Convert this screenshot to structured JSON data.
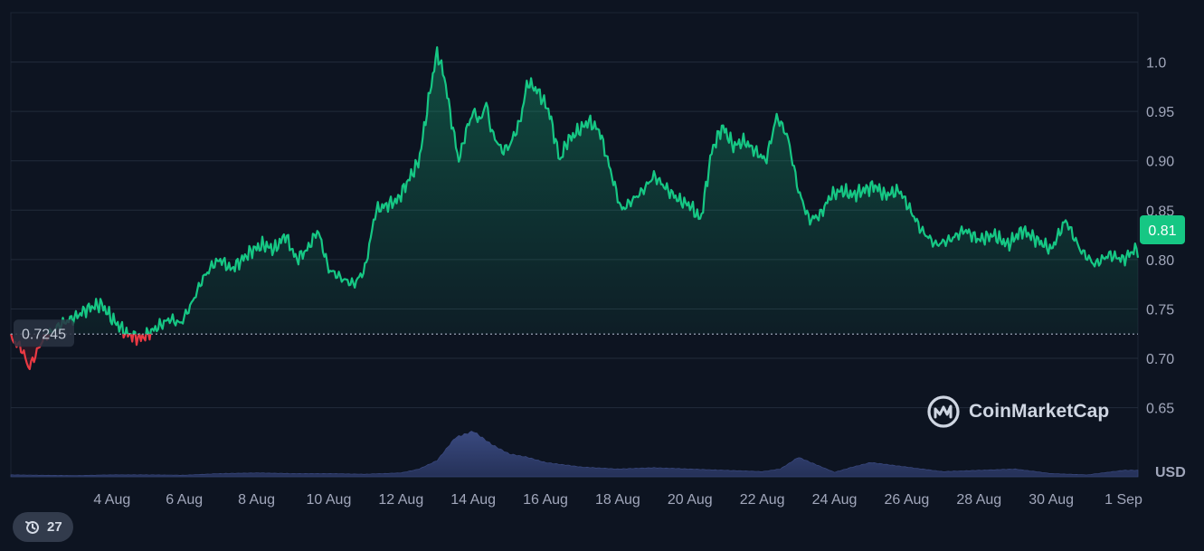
{
  "chart_data": {
    "type": "area",
    "x_tick_labels": [
      "4 Aug",
      "6 Aug",
      "8 Aug",
      "10 Aug",
      "12 Aug",
      "14 Aug",
      "16 Aug",
      "18 Aug",
      "20 Aug",
      "22 Aug",
      "24 Aug",
      "26 Aug",
      "28 Aug",
      "30 Aug",
      "1 Sep"
    ],
    "y_tick_labels": [
      "1.0",
      "0.95",
      "0.90",
      "0.85",
      "0.80",
      "0.75",
      "0.70",
      "0.65"
    ],
    "y_ticks": [
      1.0,
      0.95,
      0.9,
      0.85,
      0.8,
      0.75,
      0.7,
      0.65
    ],
    "ylim": [
      0.58,
      1.05
    ],
    "xlim_days": [
      1.2,
      32.4
    ],
    "currency_label": "USD",
    "baseline": {
      "value": 0.7245,
      "label": "0.7245"
    },
    "current_price": {
      "value": 0.81,
      "label": "0.81"
    },
    "grid": true,
    "series": [
      {
        "x": [
          1.2,
          1.5,
          1.7,
          1.9,
          2.1,
          2.6,
          3.0,
          3.3,
          3.7,
          4.0,
          4.4,
          4.8,
          5.2,
          5.6,
          5.9,
          6.2,
          6.5,
          6.8,
          7.0,
          7.3,
          7.6,
          7.9,
          8.2,
          8.5,
          8.8,
          9.1,
          9.4,
          9.7,
          10.0,
          10.4,
          10.7,
          11.0,
          11.3,
          11.6,
          11.9,
          12.2,
          12.5,
          12.8,
          13.0,
          13.2,
          13.4,
          13.6,
          13.8,
          14.0,
          14.2,
          14.35,
          14.5,
          14.8,
          15.0,
          15.3,
          15.5,
          15.8,
          16.1,
          16.4,
          16.6,
          16.9,
          17.2,
          17.5,
          17.8,
          18.1,
          18.4,
          18.7,
          19.0,
          19.4,
          19.7,
          20.0,
          20.3,
          20.6,
          20.9,
          21.2,
          21.5,
          21.8,
          22.1,
          22.4,
          22.7,
          23.0,
          23.3,
          23.6,
          23.9,
          24.2,
          24.5,
          24.8,
          25.1,
          25.4,
          25.8,
          26.1,
          26.4,
          26.8,
          27.2,
          27.6,
          28.0,
          28.4,
          28.8,
          29.2,
          29.6,
          30.0,
          30.4,
          30.8,
          31.2,
          31.6,
          32.0,
          32.3,
          32.4
        ],
        "y": [
          0.72,
          0.71,
          0.69,
          0.705,
          0.72,
          0.735,
          0.742,
          0.75,
          0.755,
          0.74,
          0.725,
          0.72,
          0.73,
          0.74,
          0.735,
          0.755,
          0.78,
          0.795,
          0.8,
          0.79,
          0.8,
          0.81,
          0.815,
          0.81,
          0.825,
          0.8,
          0.81,
          0.83,
          0.79,
          0.78,
          0.775,
          0.79,
          0.85,
          0.855,
          0.86,
          0.88,
          0.9,
          0.97,
          1.01,
          0.985,
          0.94,
          0.9,
          0.93,
          0.95,
          0.94,
          0.96,
          0.93,
          0.91,
          0.915,
          0.94,
          0.98,
          0.97,
          0.95,
          0.9,
          0.92,
          0.93,
          0.94,
          0.93,
          0.89,
          0.85,
          0.86,
          0.87,
          0.885,
          0.87,
          0.86,
          0.855,
          0.84,
          0.91,
          0.935,
          0.915,
          0.92,
          0.91,
          0.9,
          0.945,
          0.925,
          0.87,
          0.84,
          0.845,
          0.865,
          0.87,
          0.865,
          0.87,
          0.875,
          0.865,
          0.87,
          0.85,
          0.83,
          0.815,
          0.82,
          0.83,
          0.82,
          0.825,
          0.815,
          0.83,
          0.82,
          0.81,
          0.84,
          0.81,
          0.795,
          0.805,
          0.8,
          0.81,
          0.81
        ]
      }
    ],
    "volume": {
      "x": [
        1.2,
        2,
        3,
        4,
        5,
        6,
        7,
        8,
        9,
        10,
        11,
        12,
        12.5,
        13,
        13.5,
        14,
        14.5,
        15,
        15.5,
        16,
        17,
        18,
        19,
        20,
        21,
        22,
        22.5,
        23,
        24,
        24.5,
        25,
        26,
        27,
        28,
        29,
        30,
        31,
        32,
        32.4
      ],
      "y": [
        0.03,
        0.025,
        0.02,
        0.03,
        0.03,
        0.025,
        0.05,
        0.06,
        0.05,
        0.05,
        0.04,
        0.06,
        0.12,
        0.25,
        0.6,
        0.7,
        0.5,
        0.35,
        0.3,
        0.22,
        0.15,
        0.12,
        0.14,
        0.12,
        0.1,
        0.08,
        0.12,
        0.3,
        0.07,
        0.15,
        0.22,
        0.15,
        0.08,
        0.1,
        0.12,
        0.05,
        0.03,
        0.1,
        0.1
      ]
    }
  },
  "logo": {
    "text": "CoinMarketCap",
    "icon": "coinmarketcap-logo-icon"
  },
  "history_badge": {
    "count": "27",
    "icon": "history-clock-icon"
  },
  "colors": {
    "background": "#0d1421",
    "up": "#16c784",
    "down": "#ea3943",
    "grid": "#222b3b",
    "volume": "#2e3a66",
    "axis_text": "#a1a7bb"
  }
}
